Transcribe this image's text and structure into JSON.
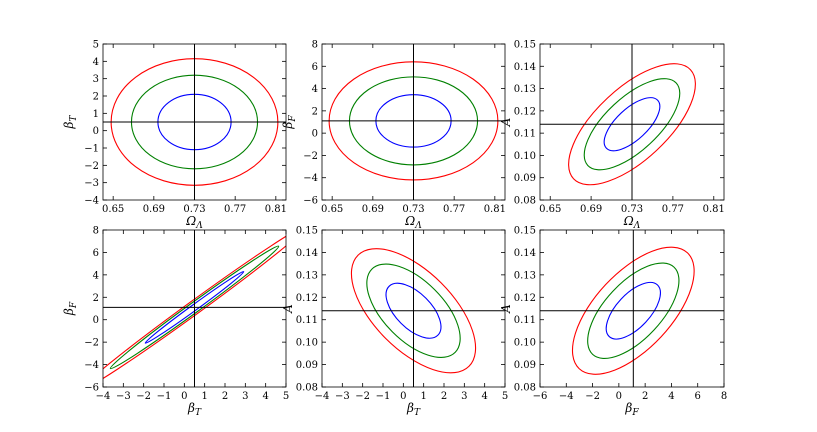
{
  "colors": {
    "inner": "#0000ff",
    "middle": "#008000",
    "outer": "#ff0000",
    "reference": "#000000"
  },
  "chart_data": [
    {
      "type": "line",
      "title": "",
      "xlabel": {
        "main": "Ω",
        "sub": "Λ"
      },
      "ylabel": {
        "main": "β",
        "sub": "T"
      },
      "xlim": [
        0.64,
        0.82
      ],
      "ylim": [
        -4,
        5
      ],
      "xticks": [
        0.65,
        0.69,
        0.73,
        0.77,
        0.81
      ],
      "yticks": [
        -4,
        -3,
        -2,
        -1,
        0,
        1,
        2,
        3,
        4,
        5
      ],
      "reference": {
        "x": 0.73,
        "y": 0.5
      },
      "center": [
        0.73,
        0.5
      ],
      "series": [
        {
          "color": "blue",
          "rx": 0.036,
          "ry": 1.6,
          "angle": 0
        },
        {
          "color": "green",
          "rx": 0.062,
          "ry": 2.7,
          "angle": 0
        },
        {
          "color": "red",
          "rx": 0.082,
          "ry": 3.65,
          "angle": 0
        }
      ],
      "grid": false
    },
    {
      "type": "line",
      "title": "",
      "xlabel": {
        "main": "Ω",
        "sub": "Λ"
      },
      "ylabel": {
        "main": "β",
        "sub": "F"
      },
      "xlim": [
        0.64,
        0.82
      ],
      "ylim": [
        -6,
        8
      ],
      "xticks": [
        0.65,
        0.69,
        0.73,
        0.77,
        0.81
      ],
      "yticks": [
        -6,
        -4,
        -2,
        0,
        2,
        4,
        6,
        8
      ],
      "reference": {
        "x": 0.73,
        "y": 1.1
      },
      "center": [
        0.73,
        1.1
      ],
      "series": [
        {
          "color": "blue",
          "rx": 0.037,
          "ry": 2.35,
          "angle": 0
        },
        {
          "color": "green",
          "rx": 0.063,
          "ry": 3.95,
          "angle": 0
        },
        {
          "color": "red",
          "rx": 0.083,
          "ry": 5.3,
          "angle": 0
        }
      ],
      "grid": false
    },
    {
      "type": "line",
      "title": "",
      "xlabel": {
        "main": "Ω",
        "sub": "Λ"
      },
      "ylabel": {
        "main": "A",
        "sub": ""
      },
      "xlim": [
        0.64,
        0.82
      ],
      "ylim": [
        0.08,
        0.15
      ],
      "xticks": [
        0.65,
        0.69,
        0.73,
        0.77,
        0.81
      ],
      "yticks": [
        0.08,
        0.09,
        0.1,
        0.11,
        0.12,
        0.13,
        0.14,
        0.15
      ],
      "reference": {
        "x": 0.73,
        "y": 0.114
      },
      "center": [
        0.73,
        0.114
      ],
      "series": [
        {
          "color": "blue",
          "rx": 0.9,
          "ry": 0.4,
          "angle": -43
        },
        {
          "color": "green",
          "rx": 1.55,
          "ry": 0.68,
          "angle": -43
        },
        {
          "color": "red",
          "rx": 2.05,
          "ry": 0.92,
          "angle": -43
        }
      ],
      "grid": false
    },
    {
      "type": "line",
      "title": "",
      "xlabel": {
        "main": "β",
        "sub": "T"
      },
      "ylabel": {
        "main": "β",
        "sub": "F"
      },
      "xlim": [
        -4,
        5
      ],
      "ylim": [
        -6,
        8
      ],
      "xticks": [
        -4,
        -3,
        -2,
        -1,
        0,
        1,
        2,
        3,
        4,
        5
      ],
      "yticks": [
        -6,
        -4,
        -2,
        0,
        2,
        4,
        6,
        8
      ],
      "reference": {
        "x": 0.5,
        "y": 1.1
      },
      "center": [
        0.5,
        1.1
      ],
      "series": [
        {
          "color": "blue",
          "rx": 1.55,
          "ry": 0.075,
          "angle": -36
        },
        {
          "color": "green",
          "rx": 2.65,
          "ry": 0.13,
          "angle": -36
        },
        {
          "color": "red",
          "rx": 3.55,
          "ry": 0.17,
          "angle": -36
        }
      ],
      "grid": false
    },
    {
      "type": "line",
      "title": "",
      "xlabel": {
        "main": "β",
        "sub": "T"
      },
      "ylabel": {
        "main": "A",
        "sub": ""
      },
      "xlim": [
        -4,
        5
      ],
      "ylim": [
        0.08,
        0.15
      ],
      "xticks": [
        -4,
        -3,
        -2,
        -1,
        0,
        1,
        2,
        3,
        4,
        5
      ],
      "yticks": [
        0.08,
        0.09,
        0.1,
        0.11,
        0.12,
        0.13,
        0.14,
        0.15
      ],
      "reference": {
        "x": 0.5,
        "y": 0.114
      },
      "center": [
        0.5,
        0.114
      ],
      "series": [
        {
          "color": "blue",
          "rx": 0.88,
          "ry": 0.45,
          "angle": 45
        },
        {
          "color": "green",
          "rx": 1.5,
          "ry": 0.76,
          "angle": 45
        },
        {
          "color": "red",
          "rx": 2.0,
          "ry": 1.0,
          "angle": 45
        }
      ],
      "grid": false
    },
    {
      "type": "line",
      "title": "",
      "xlabel": {
        "main": "β",
        "sub": "F"
      },
      "ylabel": {
        "main": "A",
        "sub": ""
      },
      "xlim": [
        -6,
        8
      ],
      "ylim": [
        0.08,
        0.15
      ],
      "xticks": [
        -6,
        -4,
        -2,
        0,
        2,
        4,
        6,
        8
      ],
      "yticks": [
        0.08,
        0.09,
        0.1,
        0.11,
        0.12,
        0.13,
        0.14,
        0.15
      ],
      "reference": {
        "x": 1.1,
        "y": 0.114
      },
      "center": [
        1.1,
        0.114
      ],
      "series": [
        {
          "color": "blue",
          "rx": 0.9,
          "ry": 0.43,
          "angle": -47
        },
        {
          "color": "green",
          "rx": 1.52,
          "ry": 0.72,
          "angle": -47
        },
        {
          "color": "red",
          "rx": 2.02,
          "ry": 0.97,
          "angle": -47
        }
      ],
      "grid": false
    }
  ]
}
